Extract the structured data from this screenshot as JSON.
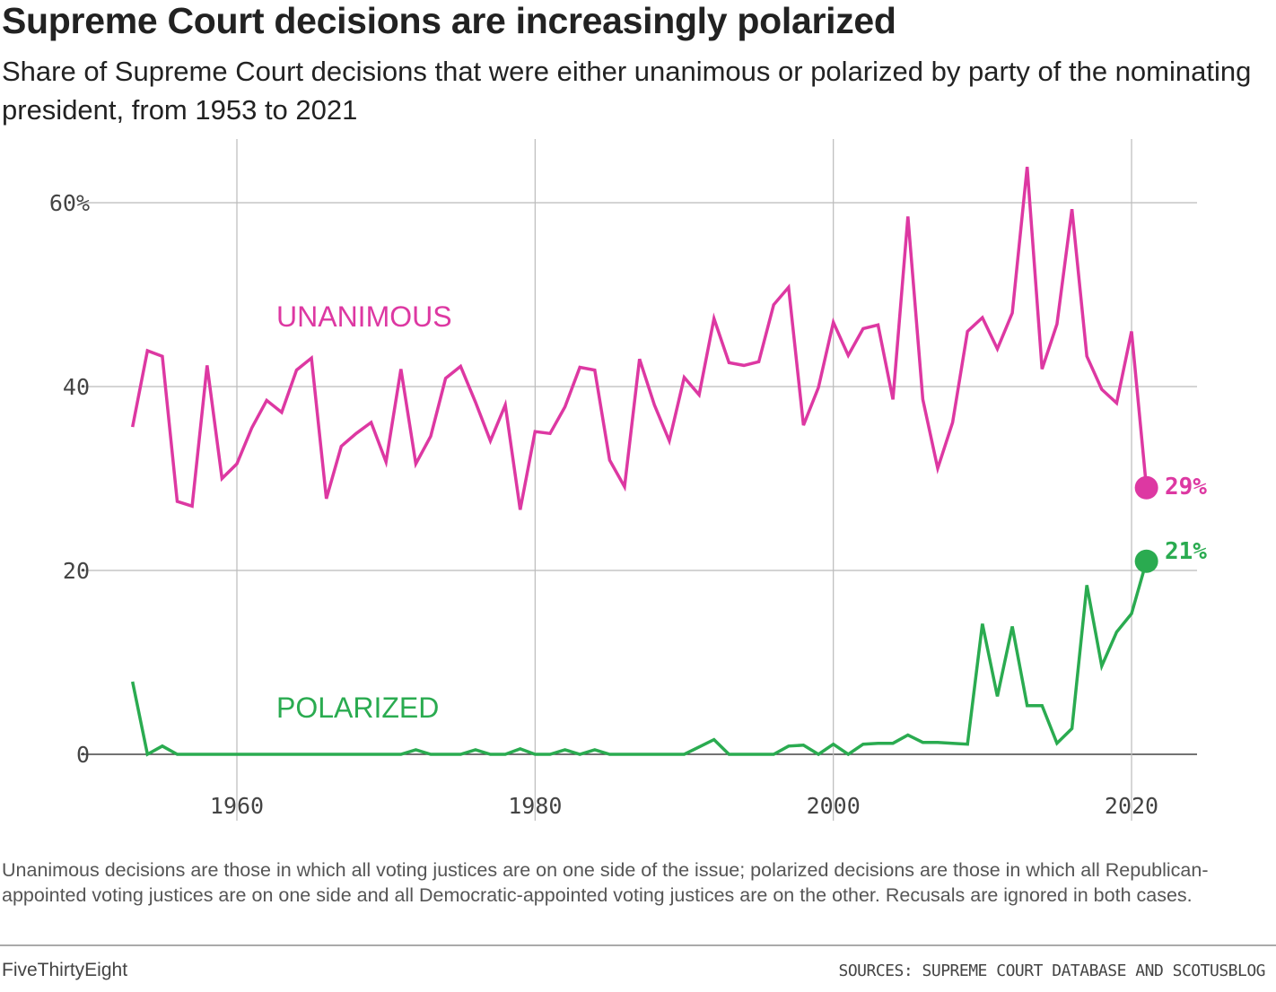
{
  "title": "Supreme Court decisions are increasingly polarized",
  "subtitle": "Share of Supreme Court decisions that were either unanimous or polarized by party of the nominating president, from 1953 to 2021",
  "note": "Unanimous decisions are those in which all voting justices are on one side of the issue; polarized decisions are those in which all Republican-appointed voting justices are on one side and all Democratic-appointed voting justices are on the other. Recusals are ignored in both cases.",
  "brand": "FiveThirtyEight",
  "source": "SOURCES: SUPREME COURT DATABASE AND SCOTUSBLOG",
  "chart_data": {
    "type": "line",
    "title": "Supreme Court decisions are increasingly polarized",
    "xlabel": "",
    "ylabel": "",
    "xlim": [
      1953,
      2021
    ],
    "ylim": [
      0,
      65
    ],
    "grid": true,
    "x_ticks": [
      1960,
      1980,
      2000,
      2020
    ],
    "x_tick_labels": [
      "1960",
      "1980",
      "2000",
      "2020"
    ],
    "y_ticks": [
      0,
      20,
      40,
      60
    ],
    "y_tick_labels": [
      "0",
      "20",
      "40",
      "60%"
    ],
    "x": [
      1953,
      1954,
      1955,
      1956,
      1957,
      1958,
      1959,
      1960,
      1961,
      1962,
      1963,
      1964,
      1965,
      1966,
      1967,
      1968,
      1969,
      1970,
      1971,
      1972,
      1973,
      1974,
      1975,
      1976,
      1977,
      1978,
      1979,
      1980,
      1981,
      1982,
      1983,
      1984,
      1985,
      1986,
      1987,
      1988,
      1989,
      1990,
      1991,
      1992,
      1993,
      1994,
      1995,
      1996,
      1997,
      1998,
      1999,
      2000,
      2001,
      2002,
      2003,
      2004,
      2005,
      2006,
      2007,
      2008,
      2009,
      2010,
      2011,
      2012,
      2013,
      2014,
      2015,
      2016,
      2017,
      2018,
      2019,
      2020,
      2021
    ],
    "series": [
      {
        "name": "UNANIMOUS",
        "color": "#dd38a2",
        "end_label": "29%",
        "values": [
          35.6,
          43.9,
          43.3,
          27.5,
          27.0,
          42.3,
          30.0,
          31.6,
          35.5,
          38.5,
          37.2,
          41.8,
          43.1,
          27.8,
          33.5,
          34.9,
          36.1,
          31.8,
          41.9,
          31.6,
          34.6,
          40.9,
          42.2,
          38.3,
          34.1,
          38.0,
          26.6,
          35.1,
          34.9,
          37.8,
          42.1,
          41.8,
          32.0,
          29.1,
          43.0,
          38.0,
          34.1,
          41.0,
          39.1,
          47.4,
          42.6,
          42.3,
          42.7,
          48.9,
          50.8,
          35.8,
          39.9,
          47.0,
          43.4,
          46.3,
          46.7,
          38.6,
          58.5,
          38.6,
          31.1,
          36.1,
          46.0,
          47.5,
          44.1,
          48.0,
          63.9,
          41.9,
          46.8,
          59.3,
          43.3,
          39.7,
          38.2,
          46.0,
          29.0
        ]
      },
      {
        "name": "POLARIZED",
        "color": "#2aab50",
        "end_label": "21%",
        "values": [
          7.9,
          0,
          0.9,
          0,
          0,
          0,
          0,
          0,
          0,
          0,
          0,
          0,
          0,
          0,
          0,
          0,
          0,
          0,
          0,
          0.5,
          0,
          0,
          0,
          0.5,
          0,
          0,
          0.6,
          0,
          0,
          0.5,
          0,
          0.5,
          0,
          0,
          0,
          0,
          0,
          0,
          0.8,
          1.6,
          0,
          0,
          0,
          0,
          0.9,
          1.0,
          0,
          1.1,
          0,
          1.1,
          1.2,
          1.2,
          2.1,
          1.3,
          1.3,
          1.2,
          1.1,
          14.2,
          6.3,
          13.9,
          5.3,
          5.3,
          1.2,
          2.8,
          18.4,
          9.6,
          13.3,
          15.3,
          21.0
        ]
      }
    ]
  }
}
